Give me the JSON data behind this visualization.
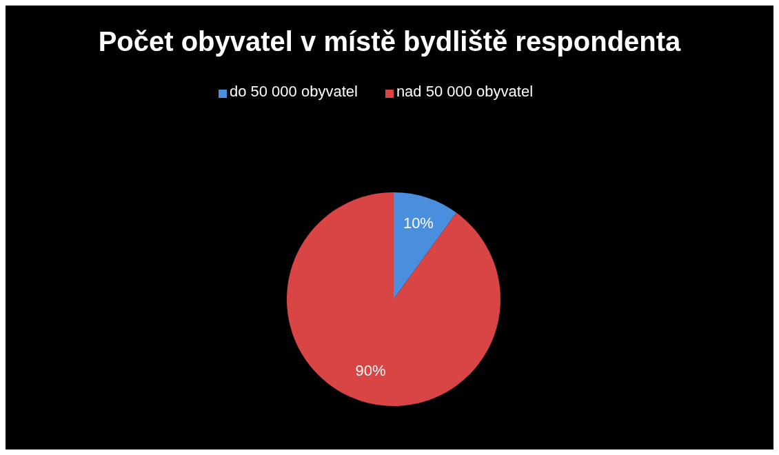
{
  "chart_data": {
    "type": "pie",
    "title": "Počet obyvatel v místě bydliště respondenta",
    "categories": [
      "do 50 000 obyvatel",
      "nad 50 000 obyvatel"
    ],
    "values": [
      10,
      90
    ],
    "colors": [
      "#4a8ede",
      "#d94444"
    ],
    "value_labels": [
      "10%",
      "90%"
    ],
    "legend": "top"
  }
}
